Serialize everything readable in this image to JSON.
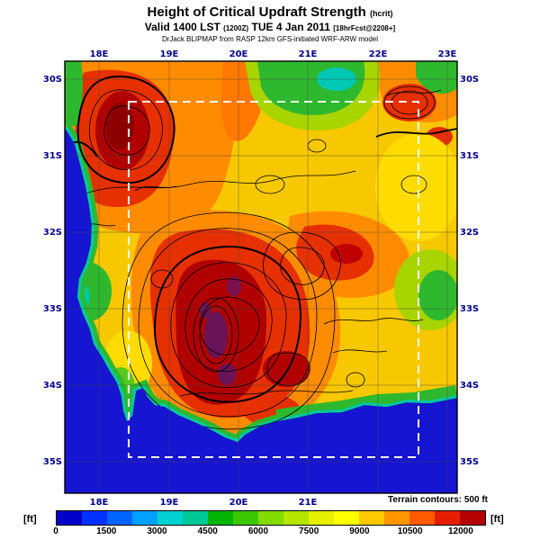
{
  "header": {
    "title": "Height of Critical Updraft Strength",
    "param": "(hcrit)",
    "valid": "Valid 1400 LST",
    "valid_z": "(1200Z)",
    "valid_date": "TUE 4 Jan 2011",
    "fcst": "[18hrFcst@2208+]",
    "model": "DrJack BLIPMAP from RASP 12km GFS-initiated WRF-ARW model"
  },
  "map": {
    "lon_labels": [
      "18E",
      "19E",
      "20E",
      "21E",
      "22E",
      "23E"
    ],
    "lat_labels": [
      "30S",
      "31S",
      "32S",
      "33S",
      "34S",
      "35S"
    ],
    "ocean_color": "#1515d2",
    "domain_box_color": "#ffffff"
  },
  "footer": {
    "terrain_note": "Terrain contours: 500 ft",
    "unit": "[ft]"
  },
  "colorbar": {
    "ticks": [
      "0",
      "1500",
      "3000",
      "4500",
      "6000",
      "7500",
      "9000",
      "10500",
      "12000"
    ],
    "colors": [
      "#0000c8",
      "#0032ff",
      "#0064ff",
      "#00a0ff",
      "#00d2d2",
      "#00c896",
      "#00b400",
      "#3cc800",
      "#82dc00",
      "#b4e600",
      "#e6f000",
      "#ffff00",
      "#ffc800",
      "#ff9600",
      "#ff5a00",
      "#e61e00",
      "#b40000"
    ]
  },
  "chart_data": {
    "type": "heatmap",
    "variable": "Height of Critical Updraft Strength (hcrit)",
    "units": "ft",
    "valid": "1400 LST (1200Z) TUE 4 Jan 2011",
    "forecast": "18hrFcst@2208+",
    "model": "RASP 12km GFS-initiated WRF-ARW (DrJack BLIPMAP)",
    "x_axis": {
      "label": "longitude",
      "ticks": [
        "18E",
        "19E",
        "20E",
        "21E",
        "22E",
        "23E"
      ]
    },
    "y_axis": {
      "label": "latitude",
      "ticks": [
        "30S",
        "31S",
        "32S",
        "33S",
        "34S",
        "35S"
      ]
    },
    "scale_ticks_ft": [
      0,
      1500,
      3000,
      4500,
      6000,
      7500,
      9000,
      10500,
      12000
    ],
    "scale_colors": [
      "#0000c8",
      "#0032ff",
      "#0064ff",
      "#00a0ff",
      "#00d2d2",
      "#00c896",
      "#00b400",
      "#3cc800",
      "#82dc00",
      "#b4e600",
      "#e6f000",
      "#ffff00",
      "#ffc800",
      "#ff9600",
      "#ff5a00",
      "#e61e00",
      "#b40000"
    ],
    "annotations": [
      "Terrain contours: 500 ft",
      "white dashed inner model-domain box"
    ],
    "field_summary": {
      "ocean": "~0 ft (blue)",
      "coastal_strips": "3000-5000 ft (green/teal)",
      "most_land": "6000-9000 ft (yellow/orange)",
      "interior_mountains": "9000-12000+ ft (red, dark red, purple maxima)"
    }
  }
}
